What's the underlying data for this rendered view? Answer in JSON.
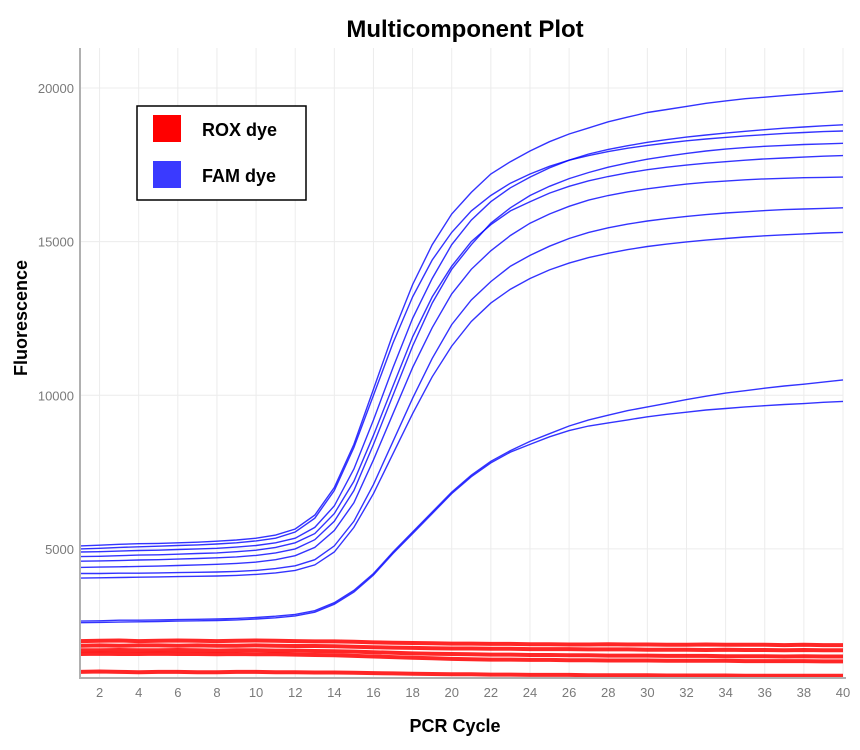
{
  "chart_data": {
    "type": "line",
    "title": "Multicomponent Plot",
    "xlabel": "PCR Cycle",
    "ylabel": "Fluorescence",
    "xlim": [
      1,
      40
    ],
    "ylim": [
      800,
      21300
    ],
    "x_ticks": [
      2,
      4,
      6,
      8,
      10,
      12,
      14,
      16,
      18,
      20,
      22,
      24,
      26,
      28,
      30,
      32,
      34,
      36,
      38,
      40
    ],
    "y_ticks": [
      5000,
      10000,
      15000,
      20000
    ],
    "grid": true,
    "legend_position": "top-left",
    "legend": [
      {
        "name": "ROX dye",
        "color": "#ff0000"
      },
      {
        "name": "FAM dye",
        "color": "#3a3aff"
      }
    ],
    "line_colors": {
      "ROX dye": "#ff0000",
      "FAM dye": "#0000ff"
    },
    "x": [
      1,
      2,
      3,
      4,
      5,
      6,
      7,
      8,
      9,
      10,
      11,
      12,
      13,
      14,
      15,
      16,
      17,
      18,
      19,
      20,
      21,
      22,
      23,
      24,
      25,
      26,
      27,
      28,
      29,
      30,
      31,
      32,
      33,
      34,
      35,
      36,
      37,
      38,
      39,
      40
    ],
    "series": [
      {
        "dye": "FAM dye",
        "values": [
          5100,
          5120,
          5150,
          5170,
          5180,
          5200,
          5220,
          5250,
          5290,
          5350,
          5450,
          5650,
          6100,
          7000,
          8400,
          10200,
          12000,
          13600,
          14900,
          15900,
          16600,
          17200,
          17600,
          17950,
          18250,
          18500,
          18700,
          18900,
          19050,
          19200,
          19300,
          19400,
          19500,
          19580,
          19650,
          19700,
          19750,
          19800,
          19850,
          19900
        ]
      },
      {
        "dye": "FAM dye",
        "values": [
          4900,
          4910,
          4930,
          4950,
          4960,
          4980,
          5000,
          5020,
          5060,
          5110,
          5200,
          5350,
          5700,
          6400,
          7600,
          9200,
          10900,
          12500,
          13800,
          14900,
          15700,
          16300,
          16750,
          17100,
          17400,
          17650,
          17850,
          18000,
          18120,
          18230,
          18320,
          18400,
          18470,
          18530,
          18590,
          18640,
          18690,
          18730,
          18770,
          18800
        ]
      },
      {
        "dye": "FAM dye",
        "values": [
          4600,
          4610,
          4620,
          4640,
          4650,
          4670,
          4690,
          4710,
          4740,
          4790,
          4870,
          5000,
          5300,
          5900,
          6900,
          8400,
          10000,
          11600,
          13000,
          14100,
          14900,
          15600,
          16100,
          16500,
          16800,
          17050,
          17250,
          17420,
          17560,
          17680,
          17780,
          17870,
          17950,
          18010,
          18060,
          18100,
          18130,
          18160,
          18180,
          18200
        ]
      },
      {
        "dye": "FAM dye",
        "values": [
          4400,
          4410,
          4420,
          4430,
          4440,
          4460,
          4480,
          4500,
          4530,
          4570,
          4650,
          4780,
          5050,
          5600,
          6500,
          7900,
          9400,
          10900,
          12200,
          13300,
          14100,
          14700,
          15200,
          15600,
          15900,
          16150,
          16350,
          16500,
          16620,
          16720,
          16800,
          16870,
          16930,
          16970,
          17010,
          17040,
          17060,
          17080,
          17090,
          17100
        ]
      },
      {
        "dye": "FAM dye",
        "values": [
          4200,
          4200,
          4210,
          4210,
          4220,
          4230,
          4240,
          4250,
          4270,
          4300,
          4360,
          4450,
          4650,
          5100,
          5900,
          7100,
          8500,
          9900,
          11200,
          12300,
          13100,
          13700,
          14200,
          14550,
          14850,
          15100,
          15300,
          15450,
          15570,
          15670,
          15750,
          15820,
          15880,
          15930,
          15970,
          16010,
          16040,
          16060,
          16080,
          16100
        ]
      },
      {
        "dye": "FAM dye",
        "values": [
          4050,
          4060,
          4070,
          4080,
          4090,
          4100,
          4110,
          4120,
          4140,
          4170,
          4220,
          4300,
          4480,
          4900,
          5700,
          6800,
          8100,
          9400,
          10600,
          11600,
          12400,
          13000,
          13450,
          13800,
          14080,
          14300,
          14480,
          14620,
          14740,
          14840,
          14920,
          14990,
          15050,
          15100,
          15150,
          15190,
          15220,
          15250,
          15280,
          15300
        ]
      },
      {
        "dye": "FAM dye",
        "values": [
          5000,
          5020,
          5050,
          5070,
          5090,
          5110,
          5130,
          5160,
          5200,
          5260,
          5350,
          5550,
          6000,
          6900,
          8300,
          10000,
          11700,
          13200,
          14400,
          15300,
          16000,
          16500,
          16900,
          17200,
          17450,
          17650,
          17800,
          17930,
          18040,
          18130,
          18210,
          18280,
          18340,
          18390,
          18440,
          18480,
          18520,
          18550,
          18580,
          18600
        ]
      },
      {
        "dye": "FAM dye",
        "values": [
          4750,
          4760,
          4780,
          4800,
          4810,
          4830,
          4850,
          4870,
          4910,
          4960,
          5050,
          5200,
          5500,
          6150,
          7200,
          8700,
          10300,
          11900,
          13200,
          14200,
          15000,
          15550,
          16000,
          16300,
          16580,
          16800,
          16980,
          17120,
          17240,
          17340,
          17420,
          17490,
          17550,
          17600,
          17650,
          17690,
          17720,
          17750,
          17780,
          17800
        ]
      },
      {
        "dye": "FAM dye",
        "values": [
          2650,
          2660,
          2680,
          2680,
          2690,
          2700,
          2710,
          2720,
          2740,
          2770,
          2810,
          2870,
          2990,
          3250,
          3650,
          4200,
          4900,
          5550,
          6200,
          6850,
          7400,
          7850,
          8200,
          8500,
          8750,
          9000,
          9200,
          9350,
          9500,
          9620,
          9740,
          9860,
          9970,
          10070,
          10150,
          10230,
          10300,
          10360,
          10430,
          10500
        ]
      },
      {
        "dye": "FAM dye",
        "values": [
          2600,
          2610,
          2620,
          2630,
          2640,
          2650,
          2660,
          2670,
          2690,
          2720,
          2760,
          2820,
          2940,
          3200,
          3600,
          4150,
          4850,
          5500,
          6150,
          6800,
          7350,
          7800,
          8150,
          8400,
          8650,
          8850,
          9000,
          9100,
          9200,
          9300,
          9380,
          9450,
          9520,
          9570,
          9620,
          9660,
          9700,
          9730,
          9770,
          9800
        ]
      },
      {
        "dye": "ROX dye",
        "values": [
          2000,
          2010,
          2020,
          2000,
          2010,
          2020,
          2010,
          2000,
          2010,
          2020,
          2010,
          2000,
          1990,
          1990,
          1980,
          1960,
          1950,
          1940,
          1930,
          1920,
          1920,
          1910,
          1910,
          1900,
          1900,
          1890,
          1890,
          1900,
          1890,
          1890,
          1880,
          1880,
          1890,
          1880,
          1880,
          1880,
          1870,
          1880,
          1870,
          1870
        ]
      },
      {
        "dye": "ROX dye",
        "values": [
          1850,
          1860,
          1850,
          1860,
          1860,
          1850,
          1860,
          1850,
          1850,
          1860,
          1850,
          1840,
          1840,
          1830,
          1820,
          1800,
          1790,
          1780,
          1770,
          1760,
          1760,
          1750,
          1750,
          1740,
          1740,
          1740,
          1730,
          1730,
          1730,
          1720,
          1720,
          1720,
          1710,
          1720,
          1710,
          1710,
          1700,
          1710,
          1700,
          1700
        ]
      },
      {
        "dye": "ROX dye",
        "values": [
          1700,
          1700,
          1710,
          1700,
          1700,
          1710,
          1700,
          1690,
          1700,
          1700,
          1690,
          1690,
          1680,
          1670,
          1660,
          1640,
          1620,
          1600,
          1590,
          1580,
          1570,
          1560,
          1560,
          1550,
          1550,
          1540,
          1540,
          1530,
          1530,
          1530,
          1520,
          1520,
          1520,
          1510,
          1510,
          1510,
          1500,
          1510,
          1500,
          1500
        ]
      },
      {
        "dye": "ROX dye",
        "values": [
          1580,
          1590,
          1580,
          1580,
          1590,
          1580,
          1580,
          1570,
          1580,
          1570,
          1570,
          1560,
          1550,
          1540,
          1520,
          1500,
          1480,
          1460,
          1440,
          1420,
          1410,
          1400,
          1400,
          1390,
          1390,
          1380,
          1380,
          1370,
          1370,
          1370,
          1360,
          1360,
          1360,
          1360,
          1350,
          1350,
          1350,
          1350,
          1340,
          1340
        ]
      },
      {
        "dye": "ROX dye",
        "values": [
          1000,
          1010,
          1000,
          990,
          1000,
          1000,
          990,
          990,
          1000,
          1000,
          990,
          990,
          980,
          980,
          970,
          960,
          950,
          940,
          930,
          920,
          920,
          910,
          910,
          900,
          900,
          900,
          890,
          890,
          890,
          890,
          880,
          880,
          880,
          880,
          870,
          870,
          870,
          870,
          870,
          870
        ]
      }
    ]
  }
}
